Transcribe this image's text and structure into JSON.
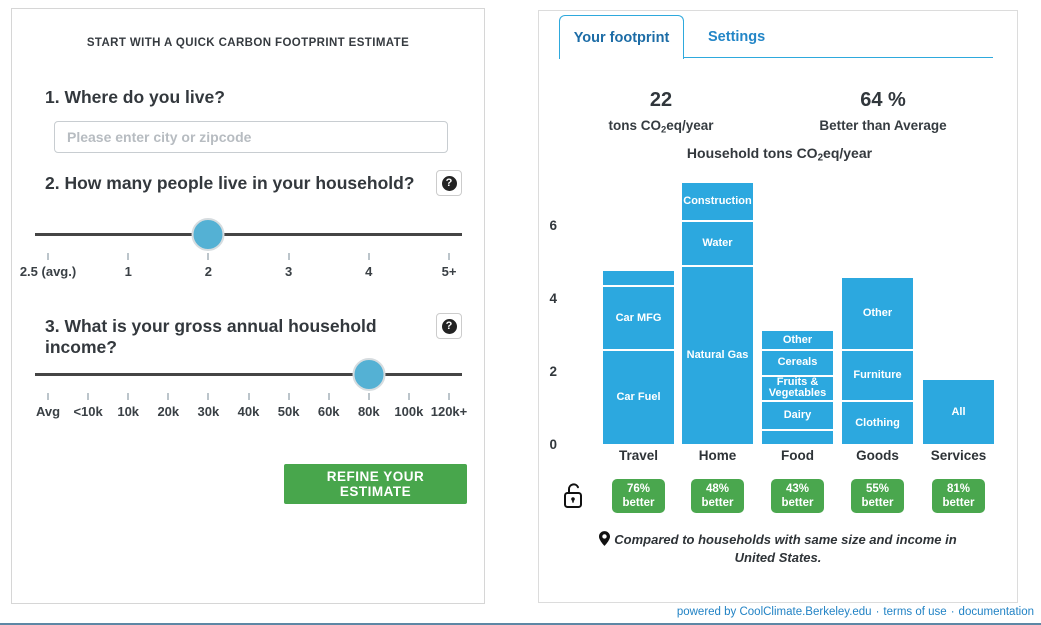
{
  "left_panel": {
    "title": "START WITH A QUICK CARBON FOOTPRINT ESTIMATE",
    "q1": {
      "label": "1. Where do you live?",
      "placeholder": "Please enter city or zipcode",
      "value": ""
    },
    "q2": {
      "label": "2. How many people live in your household?",
      "help_glyph": "?"
    },
    "q3": {
      "label": "3. What is your gross annual household income?",
      "help_glyph": "?"
    },
    "sliders": [
      {
        "name": "household-size",
        "ticks": [
          "2.5 (avg.)",
          "1",
          "2",
          "3",
          "4",
          "5+"
        ],
        "selected_index": 2,
        "selected_value": "2"
      },
      {
        "name": "household-income",
        "ticks": [
          "Avg",
          "<10k",
          "10k",
          "20k",
          "30k",
          "40k",
          "50k",
          "60k",
          "80k",
          "100k",
          "120k+"
        ],
        "selected_index": 8,
        "selected_value": "80k"
      }
    ],
    "submit_label": "REFINE YOUR ESTIMATE"
  },
  "right_panel": {
    "tabs": [
      {
        "label": "Your footprint",
        "active": true
      },
      {
        "label": "Settings",
        "active": false
      }
    ],
    "stats": [
      {
        "value": "22",
        "label_prefix": "tons CO",
        "label_sub": "2",
        "label_suffix": "eq/year"
      },
      {
        "value": "64 %",
        "label": "Better than Average"
      }
    ],
    "note": {
      "line1": "Compared to households with same size and income in",
      "line2": "United States."
    },
    "lock_icon": "open-padlock"
  },
  "chart_data": {
    "type": "bar",
    "stacked": true,
    "title_prefix": "Household tons CO",
    "title_sub": "2",
    "title_suffix": "eq/year",
    "unit": "tons CO2eq/year",
    "categories": [
      "Travel",
      "Home",
      "Food",
      "Goods",
      "Services"
    ],
    "stack_order": "bottom-to-top",
    "bars": [
      {
        "category": "Travel",
        "total": 4.8,
        "badge_value": "76%",
        "badge_word": "better",
        "segments": [
          {
            "label": "Car Fuel",
            "value": 2.6
          },
          {
            "label": "Car MFG",
            "value": 1.75
          },
          {
            "label": "",
            "value": 0.45
          }
        ]
      },
      {
        "category": "Home",
        "total": 7.2,
        "badge_value": "48%",
        "badge_word": "better",
        "segments": [
          {
            "label": "Natural Gas",
            "value": 4.9
          },
          {
            "label": "Water",
            "value": 1.25
          },
          {
            "label": "Construction",
            "value": 1.05
          }
        ]
      },
      {
        "category": "Food",
        "total": 3.15,
        "badge_value": "43%",
        "badge_word": "better",
        "segments": [
          {
            "label": "",
            "value": 0.4
          },
          {
            "label": "Dairy",
            "value": 0.8
          },
          {
            "label": "Fruits & Vegetables",
            "value": 0.7
          },
          {
            "label": "Cereals",
            "value": 0.7
          },
          {
            "label": "Other",
            "value": 0.55
          }
        ]
      },
      {
        "category": "Goods",
        "total": 4.6,
        "badge_value": "55%",
        "badge_word": "better",
        "segments": [
          {
            "label": "Clothing",
            "value": 1.2
          },
          {
            "label": "Furniture",
            "value": 1.4
          },
          {
            "label": "Other",
            "value": 2.0
          }
        ]
      },
      {
        "category": "Services",
        "total": 1.8,
        "badge_value": "81%",
        "badge_word": "better",
        "segments": [
          {
            "label": "All",
            "value": 1.8
          }
        ]
      }
    ],
    "yticks": [
      0,
      2,
      4,
      6
    ],
    "ylim": [
      0,
      7.6
    ],
    "grid": false,
    "legend": false,
    "bar_color": "#2ca8df",
    "badge_color": "#4aa74e"
  },
  "footer": {
    "powered": "powered by CoolClimate.Berkeley.edu",
    "sep": "·",
    "terms": "terms of use",
    "docs": "documentation"
  },
  "colors": {
    "bar_blue": "#2ca8df",
    "slider_blue": "#54b1d4",
    "green": "#48a64c",
    "link_blue": "#2283c5",
    "tab_blue": "#2ea9dd"
  }
}
